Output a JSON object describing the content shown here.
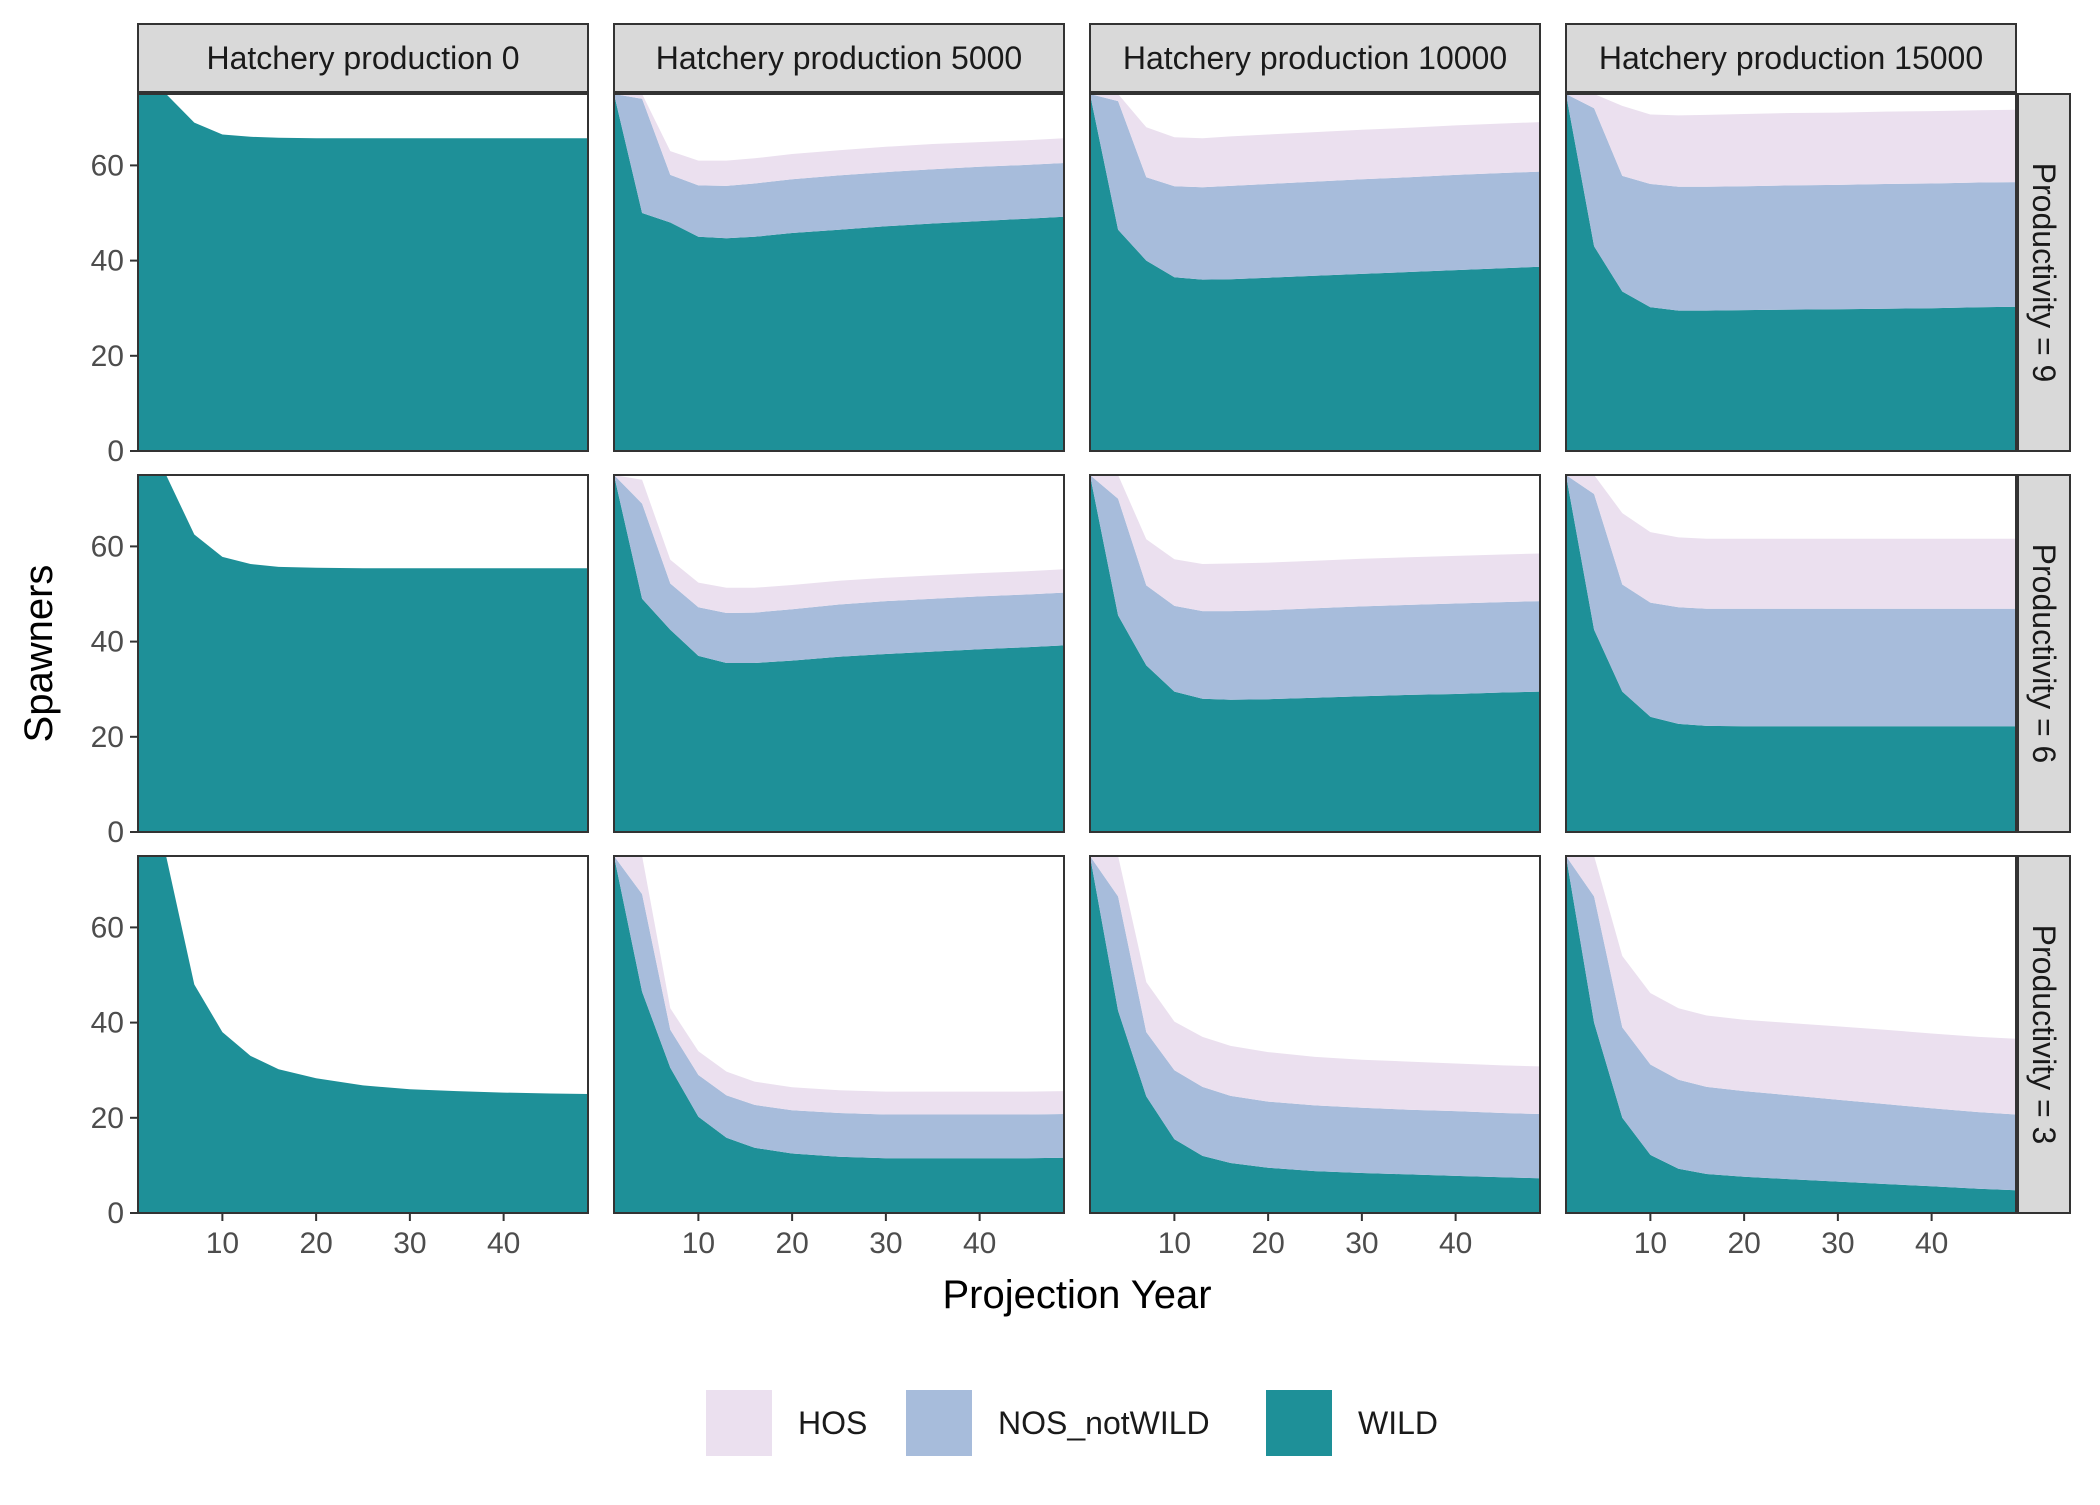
{
  "chart_data": {
    "type": "area",
    "stacked": true,
    "xlabel": "Projection Year",
    "ylabel": "Spawners",
    "xlim": [
      1,
      49
    ],
    "ylim": [
      0,
      75
    ],
    "xticks": [
      10,
      20,
      30,
      40
    ],
    "yticks": [
      0,
      20,
      40,
      60
    ],
    "column_facets": [
      "Hatchery production 0",
      "Hatchery production 5000",
      "Hatchery production 10000",
      "Hatchery production 15000"
    ],
    "row_facets": [
      "Productivity = 9",
      "Productivity = 6",
      "Productivity = 3"
    ],
    "legend": {
      "position": "bottom",
      "entries": [
        {
          "name": "HOS",
          "color": "#ebe0ef"
        },
        {
          "name": "NOS_notWILD",
          "color": "#a7bcdb"
        },
        {
          "name": "WILD",
          "color": "#1e9098"
        }
      ]
    },
    "x": [
      1,
      4,
      7,
      10,
      13,
      16,
      20,
      25,
      30,
      35,
      40,
      45,
      49
    ],
    "panels": [
      {
        "row": 0,
        "col": 0,
        "WILD": [
          76,
          76,
          69,
          66.5,
          66,
          65.8,
          65.7,
          65.7,
          65.7,
          65.7,
          65.7,
          65.7,
          65.7
        ],
        "NOS_notWILD": [
          0,
          0,
          0,
          0,
          0,
          0,
          0,
          0,
          0,
          0,
          0,
          0,
          0
        ],
        "HOS": [
          0,
          0,
          0,
          0,
          0,
          0,
          0,
          0,
          0,
          0,
          0,
          0,
          0
        ]
      },
      {
        "row": 0,
        "col": 1,
        "WILD": [
          76,
          50,
          48,
          45,
          44.7,
          45,
          45.8,
          46.5,
          47.2,
          47.8,
          48.3,
          48.8,
          49.2
        ],
        "NOS_notWILD": [
          0,
          24,
          10,
          10.8,
          11,
          11.2,
          11.3,
          11.4,
          11.4,
          11.4,
          11.4,
          11.3,
          11.3
        ],
        "HOS": [
          0,
          2,
          5,
          5.2,
          5.3,
          5.3,
          5.3,
          5.3,
          5.3,
          5.3,
          5.2,
          5.2,
          5.2
        ]
      },
      {
        "row": 0,
        "col": 2,
        "WILD": [
          76,
          46.5,
          40,
          36.5,
          36,
          36.1,
          36.4,
          36.8,
          37.2,
          37.6,
          38,
          38.4,
          38.7
        ],
        "NOS_notWILD": [
          0,
          27,
          17.5,
          19.1,
          19.4,
          19.6,
          19.7,
          19.8,
          19.9,
          19.9,
          20,
          20,
          20
        ],
        "HOS": [
          0,
          2.5,
          10.5,
          10.3,
          10.3,
          10.4,
          10.4,
          10.4,
          10.4,
          10.4,
          10.4,
          10.4,
          10.4
        ]
      },
      {
        "row": 0,
        "col": 3,
        "WILD": [
          76,
          43,
          33.5,
          30.2,
          29.5,
          29.5,
          29.6,
          29.7,
          29.8,
          29.9,
          30,
          30.2,
          30.3
        ],
        "NOS_notWILD": [
          0,
          29,
          24.3,
          25.9,
          26,
          26,
          26,
          26.1,
          26.1,
          26.2,
          26.2,
          26.2,
          26.2
        ],
        "HOS": [
          0,
          4,
          14.7,
          14.6,
          15,
          15.1,
          15.2,
          15.2,
          15.2,
          15.2,
          15.2,
          15.2,
          15.2
        ]
      },
      {
        "row": 1,
        "col": 0,
        "WILD": [
          76,
          76,
          62.5,
          57.8,
          56.3,
          55.7,
          55.5,
          55.4,
          55.4,
          55.4,
          55.4,
          55.4,
          55.4
        ],
        "NOS_notWILD": [
          0,
          0,
          0,
          0,
          0,
          0,
          0,
          0,
          0,
          0,
          0,
          0,
          0
        ],
        "HOS": [
          0,
          0,
          0,
          0,
          0,
          0,
          0,
          0,
          0,
          0,
          0,
          0,
          0
        ]
      },
      {
        "row": 1,
        "col": 1,
        "WILD": [
          76,
          49,
          42.5,
          37,
          35.5,
          35.5,
          36,
          36.8,
          37.4,
          37.9,
          38.4,
          38.8,
          39.2
        ],
        "NOS_notWILD": [
          0,
          20,
          9.7,
          10.2,
          10.5,
          10.6,
          10.8,
          11,
          11.1,
          11.1,
          11.1,
          11.1,
          11.1
        ],
        "HOS": [
          0,
          5,
          5,
          5.2,
          5.3,
          5.2,
          5.1,
          5,
          4.9,
          4.9,
          4.9,
          4.9,
          4.9
        ]
      },
      {
        "row": 1,
        "col": 2,
        "WILD": [
          76,
          45.5,
          35,
          29.5,
          28,
          27.8,
          27.9,
          28.2,
          28.5,
          28.8,
          29,
          29.3,
          29.5
        ],
        "NOS_notWILD": [
          0,
          24.5,
          16.8,
          18,
          18.4,
          18.6,
          18.7,
          18.8,
          18.9,
          18.9,
          19,
          19,
          19
        ],
        "HOS": [
          0,
          5,
          9.7,
          9.8,
          9.9,
          10,
          10,
          10,
          10,
          10,
          10,
          10,
          10
        ]
      },
      {
        "row": 1,
        "col": 3,
        "WILD": [
          76,
          42.5,
          29.5,
          24.2,
          22.7,
          22.3,
          22.2,
          22.2,
          22.2,
          22.2,
          22.2,
          22.2,
          22.2
        ],
        "NOS_notWILD": [
          0,
          28.5,
          22.5,
          24,
          24.5,
          24.6,
          24.7,
          24.7,
          24.7,
          24.7,
          24.7,
          24.7,
          24.7
        ],
        "HOS": [
          0,
          5,
          15,
          14.8,
          14.7,
          14.7,
          14.7,
          14.7,
          14.7,
          14.7,
          14.7,
          14.7,
          14.7
        ]
      },
      {
        "row": 2,
        "col": 0,
        "WILD": [
          76,
          76,
          48,
          38,
          33,
          30.2,
          28.3,
          26.8,
          26,
          25.6,
          25.3,
          25.1,
          25
        ],
        "NOS_notWILD": [
          0,
          0,
          0,
          0,
          0,
          0,
          0,
          0,
          0,
          0,
          0,
          0,
          0
        ],
        "HOS": [
          0,
          0,
          0,
          0,
          0,
          0,
          0,
          0,
          0,
          0,
          0,
          0,
          0
        ]
      },
      {
        "row": 2,
        "col": 1,
        "WILD": [
          76,
          46.5,
          30.5,
          20.2,
          15.8,
          13.7,
          12.5,
          11.8,
          11.5,
          11.5,
          11.5,
          11.5,
          11.6
        ],
        "NOS_notWILD": [
          0,
          20.5,
          8,
          8.8,
          8.9,
          9,
          9.1,
          9.2,
          9.2,
          9.2,
          9.2,
          9.2,
          9.2
        ],
        "HOS": [
          0,
          8,
          4.5,
          5,
          5,
          4.9,
          4.8,
          4.8,
          4.8,
          4.8,
          4.8,
          4.8,
          4.8
        ]
      },
      {
        "row": 2,
        "col": 2,
        "WILD": [
          76,
          42.5,
          24.5,
          15.5,
          12,
          10.5,
          9.5,
          8.8,
          8.4,
          8.1,
          7.8,
          7.5,
          7.3
        ],
        "NOS_notWILD": [
          0,
          24,
          13.5,
          14.5,
          14.5,
          14.1,
          13.9,
          13.8,
          13.7,
          13.6,
          13.6,
          13.5,
          13.5
        ],
        "HOS": [
          0,
          9.5,
          10.5,
          10.2,
          10.5,
          10.5,
          10.4,
          10.2,
          10.1,
          10.1,
          10,
          10,
          10
        ]
      },
      {
        "row": 2,
        "col": 3,
        "WILD": [
          76,
          40,
          20,
          12.2,
          9.3,
          8.2,
          7.6,
          7.1,
          6.6,
          6.1,
          5.6,
          5.1,
          4.8
        ],
        "NOS_notWILD": [
          0,
          26.5,
          19,
          19,
          18.7,
          18.3,
          18,
          17.6,
          17.2,
          16.8,
          16.4,
          16.1,
          15.9
        ],
        "HOS": [
          0,
          9.5,
          15,
          15,
          15,
          15,
          15,
          15.2,
          15.4,
          15.6,
          15.7,
          15.8,
          15.9
        ]
      }
    ]
  }
}
